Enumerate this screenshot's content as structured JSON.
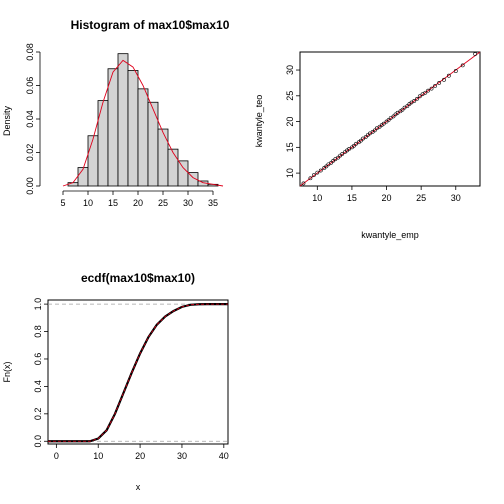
{
  "chart_data": [
    {
      "type": "bar",
      "title": "Histogram of max10$max10",
      "xlabel": "",
      "ylabel": "Density",
      "xlim": [
        2,
        38
      ],
      "ylim": [
        0,
        0.08
      ],
      "xticks": [
        5,
        10,
        15,
        20,
        25,
        30,
        35
      ],
      "yticks": [
        0.0,
        0.02,
        0.04,
        0.06,
        0.08
      ],
      "ytick_labels": [
        "0.00",
        "0.02",
        "0.04",
        "0.06",
        "0.08"
      ],
      "bin_width": 2,
      "bin_edges": [
        6,
        8,
        10,
        12,
        14,
        16,
        18,
        20,
        22,
        24,
        26,
        28,
        30,
        32,
        34,
        36
      ],
      "values": [
        0.002,
        0.011,
        0.03,
        0.051,
        0.07,
        0.079,
        0.069,
        0.058,
        0.05,
        0.034,
        0.022,
        0.015,
        0.008,
        0.003,
        0.001
      ],
      "bar_color": "#d3d3d3",
      "density_curve": {
        "color": "#e0001b",
        "x": [
          5,
          7,
          9,
          11,
          13,
          15,
          17,
          19,
          21,
          23,
          25,
          27,
          29,
          31,
          33,
          35,
          37
        ],
        "y": [
          0.0,
          0.002,
          0.01,
          0.028,
          0.05,
          0.068,
          0.075,
          0.071,
          0.06,
          0.046,
          0.032,
          0.02,
          0.011,
          0.005,
          0.002,
          0.001,
          0.0
        ]
      }
    },
    {
      "type": "scatter",
      "title": "",
      "xlabel": "kwantyle_emp",
      "ylabel": "kwantyle_teo",
      "xlim": [
        7.5,
        33.5
      ],
      "ylim": [
        7.5,
        33.5
      ],
      "xticks": [
        10,
        15,
        20,
        25,
        30
      ],
      "yticks": [
        10,
        15,
        20,
        25,
        30
      ],
      "line_color": "#e0001b",
      "reference_line": {
        "intercept": 0,
        "slope": 1
      },
      "x": [
        8,
        9,
        9.5,
        10,
        10.5,
        11,
        11.3,
        11.6,
        12,
        12.3,
        12.6,
        13,
        13.3,
        13.6,
        14,
        14.3,
        14.6,
        15,
        15.3,
        15.6,
        16,
        16.3,
        16.6,
        17,
        17.3,
        17.6,
        18,
        18.3,
        18.6,
        19,
        19.3,
        19.6,
        20,
        20.3,
        20.6,
        21,
        21.3,
        21.6,
        22,
        22.3,
        22.6,
        23,
        23.3,
        23.6,
        24,
        24.4,
        24.8,
        25.2,
        25.6,
        26,
        26.5,
        27,
        27.6,
        28.3,
        29,
        30,
        31,
        32.8
      ],
      "y": [
        8,
        9,
        9.6,
        10.1,
        10.5,
        11,
        11.3,
        11.7,
        12,
        12.4,
        12.7,
        13,
        13.4,
        13.7,
        14.1,
        14.4,
        14.7,
        15,
        15.3,
        15.7,
        16,
        16.3,
        16.7,
        17,
        17.4,
        17.7,
        18,
        18.3,
        18.7,
        19,
        19.3,
        19.6,
        20,
        20.3,
        20.7,
        21,
        21.4,
        21.7,
        22,
        22.3,
        22.7,
        23,
        23.4,
        23.7,
        24,
        24.4,
        24.9,
        25.3,
        25.6,
        26,
        26.4,
        26.9,
        27.5,
        28.1,
        28.9,
        29.8,
        30.9,
        33.1
      ]
    },
    {
      "type": "line",
      "title": "ecdf(max10$max10)",
      "xlabel": "x",
      "ylabel": "Fn(x)",
      "xlim": [
        -2,
        41
      ],
      "ylim": [
        -0.02,
        1.03
      ],
      "xticks": [
        0,
        10,
        20,
        30,
        40
      ],
      "yticks": [
        0.0,
        0.2,
        0.4,
        0.6,
        0.8,
        1.0
      ],
      "ytick_labels": [
        "0.0",
        "0.2",
        "0.4",
        "0.6",
        "0.8",
        "1.0"
      ],
      "hlines": [
        0,
        1
      ],
      "theoretical_color": "#e0001b",
      "x": [
        -2,
        8,
        10,
        12,
        14,
        16,
        18,
        20,
        22,
        24,
        26,
        28,
        30,
        32,
        34,
        36,
        41
      ],
      "y": [
        0,
        0.0,
        0.02,
        0.08,
        0.2,
        0.35,
        0.5,
        0.64,
        0.76,
        0.85,
        0.91,
        0.95,
        0.98,
        0.995,
        0.999,
        1.0,
        1.0
      ]
    }
  ]
}
